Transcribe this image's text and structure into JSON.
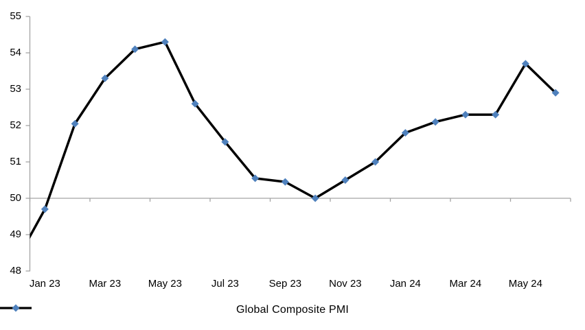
{
  "chart_data": {
    "type": "line",
    "title": "",
    "x": [
      "Dec 22",
      "Jan 23",
      "Feb 23",
      "Mar 23",
      "Apr 23",
      "May 23",
      "Jun 23",
      "Jul 23",
      "Aug 23",
      "Sep 23",
      "Oct 23",
      "Nov 23",
      "Dec 23",
      "Jan 24",
      "Feb 24",
      "Mar 24",
      "Apr 24",
      "May 24",
      "Jun 24"
    ],
    "series": [
      {
        "name": "Global Composite PMI",
        "values": [
          48.2,
          49.7,
          52.05,
          53.3,
          54.1,
          54.3,
          52.6,
          51.55,
          50.55,
          50.45,
          50.0,
          50.5,
          51.0,
          51.8,
          52.1,
          52.3,
          52.3,
          53.7,
          52.9
        ]
      }
    ],
    "notes": "First point (Dec 22) lies left of the plot edge: its marker is clipped and the line enters the plot at the y-axis at about 48.9.",
    "x_tick_labels": [
      "Jan 23",
      "Mar 23",
      "May 23",
      "Jul 23",
      "Sep 23",
      "Nov 23",
      "Jan 24",
      "Mar 24",
      "May 24"
    ],
    "y_ticks": [
      48,
      49,
      50,
      51,
      52,
      53,
      54,
      55
    ],
    "ylim": [
      48,
      55
    ],
    "x_axis_crosses_at": 50,
    "grid": "off",
    "marker": "diamond",
    "legend": {
      "label": "Global Composite PMI",
      "position": "bottom-center"
    },
    "colors": {
      "line": "#000000",
      "marker": "#4f81bd",
      "axis": "#a3a3a3",
      "text": "#000000",
      "background": "#ffffff"
    }
  }
}
